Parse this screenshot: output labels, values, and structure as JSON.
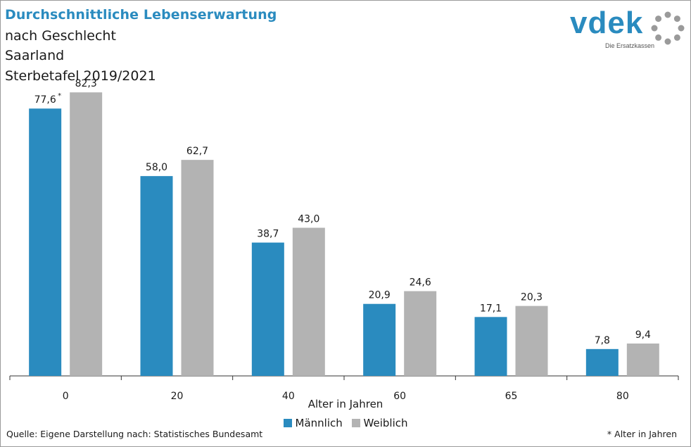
{
  "header": {
    "title": "Durchschnittliche Lebenserwartung",
    "subtitle1": "nach Geschlecht",
    "subtitle2": "Saarland",
    "subtitle3": "Sterbetafel 2019/2021"
  },
  "logo": {
    "word": "vdek",
    "tagline": "Die Ersatzkassen"
  },
  "chart_data": {
    "type": "bar",
    "title": "Durchschnittliche Lebenserwartung",
    "xlabel": "Alter in Jahren",
    "ylabel": "",
    "categories": [
      "0",
      "20",
      "40",
      "60",
      "65",
      "80"
    ],
    "series": [
      {
        "name": "Männlich",
        "color": "#2a8bbf",
        "values": [
          77.6,
          58.0,
          38.7,
          20.9,
          17.1,
          7.8
        ],
        "labels": [
          "77,6",
          "58,0",
          "38,7",
          "20,9",
          "17,1",
          "7,8"
        ]
      },
      {
        "name": "Weiblich",
        "color": "#b3b3b3",
        "values": [
          82.3,
          62.7,
          43.0,
          24.6,
          20.3,
          9.4
        ],
        "labels": [
          "82,3",
          "62,7",
          "43,0",
          "24,6",
          "20,3",
          "9,4"
        ]
      }
    ],
    "first_label_marker": "*",
    "ylim": [
      0,
      85
    ],
    "grid": false,
    "legend": "bottom-center"
  },
  "footer": {
    "source": "Quelle: Eigene Darstellung nach: Statistisches Bundesamt",
    "footnote": "* Alter in Jahren"
  }
}
